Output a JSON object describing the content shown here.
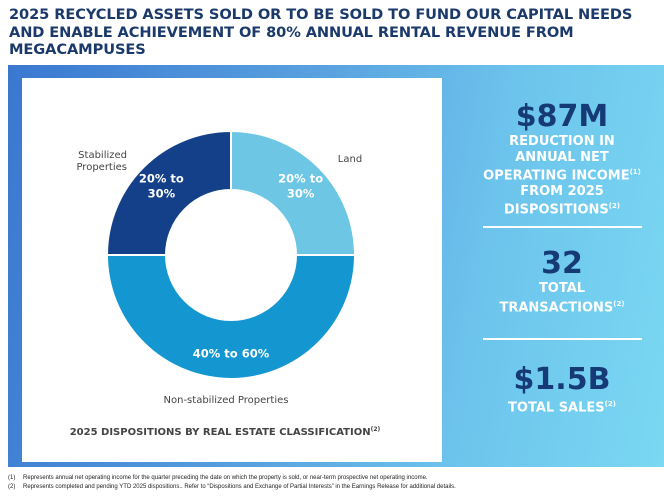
{
  "title": "2025 RECYCLED ASSETS SOLD OR TO BE SOLD TO FUND OUR CAPITAL NEEDS AND ENABLE ACHIEVEMENT OF 80% ANNUAL RENTAL REVENUE FROM MEGACAMPUSES",
  "chart_data": {
    "type": "pie",
    "donut": true,
    "title": "2025 DISPOSITIONS BY REAL ESTATE CLASSIFICATION",
    "title_footnote": "(2)",
    "slices": [
      {
        "name": "Land",
        "label": "20% to 30%",
        "range": [
          20,
          30
        ],
        "value": 25,
        "color": "#6cc6e4"
      },
      {
        "name": "Non-stabilized Properties",
        "label": "40% to 60%",
        "range": [
          40,
          60
        ],
        "value": 50,
        "color": "#1496d0"
      },
      {
        "name": "Stabilized Properties",
        "label": "20% to 30%",
        "range": [
          20,
          30
        ],
        "value": 25,
        "color": "#14408a"
      }
    ]
  },
  "stats": [
    {
      "value": "$87M",
      "lines": [
        "REDUCTION IN",
        "ANNUAL NET",
        "OPERATING INCOME",
        "FROM 2025",
        "DISPOSITIONS"
      ],
      "footnotes": [
        "",
        "",
        "(1)",
        "",
        "(2)"
      ]
    },
    {
      "value": "32",
      "lines": [
        "TOTAL",
        "TRANSACTIONS"
      ],
      "footnotes": [
        "",
        "(2)"
      ]
    },
    {
      "value": "$1.5B",
      "lines": [
        "TOTAL SALES"
      ],
      "footnotes": [
        "(2)"
      ]
    }
  ],
  "footnotes": [
    {
      "num": "(1)",
      "text": "Represents annual net operating income for the quarter preceding the date on which the property is sold, or near-term prospective net operating income."
    },
    {
      "num": "(2)",
      "text": "Represents completed and pending YTD 2025 dispositions.. Refer to “Dispositions and Exchange of Partial Interests” in the Earnings Release for additional details."
    }
  ]
}
